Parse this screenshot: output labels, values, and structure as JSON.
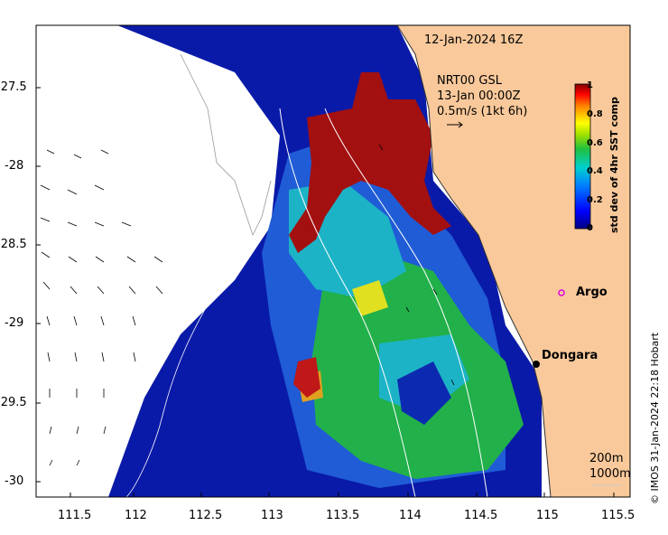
{
  "map": {
    "valid_time": "12-Jan-2024 16Z",
    "current_product": "NRT00 GSL",
    "current_time": "13-Jan 00:00Z",
    "vector_scale": "0.5m/s (1kt 6h)",
    "colorbar": {
      "title": "std dev of 4hr SST comp",
      "ticks": [
        "1",
        "0.8",
        "0.6",
        "0.4",
        "0.2",
        "0"
      ],
      "min": 0,
      "max": 1
    },
    "x_ticks": [
      "111.5",
      "112",
      "112.5",
      "113",
      "113.5",
      "114",
      "114.5",
      "115",
      "115.5"
    ],
    "y_ticks": [
      "-27.5",
      "-28",
      "-28.5",
      "-29",
      "-29.5",
      "-30"
    ],
    "places": {
      "argo": "Argo",
      "dongara": "Dongara"
    },
    "isobaths": [
      "200m",
      "1000m"
    ],
    "credit": "© IMOS 31-Jan-2024 22:18 Hobart",
    "colors": {
      "land": "#f9c99b",
      "argo_marker": "#e000e0",
      "low": "#00008b",
      "high": "#a00000"
    }
  }
}
